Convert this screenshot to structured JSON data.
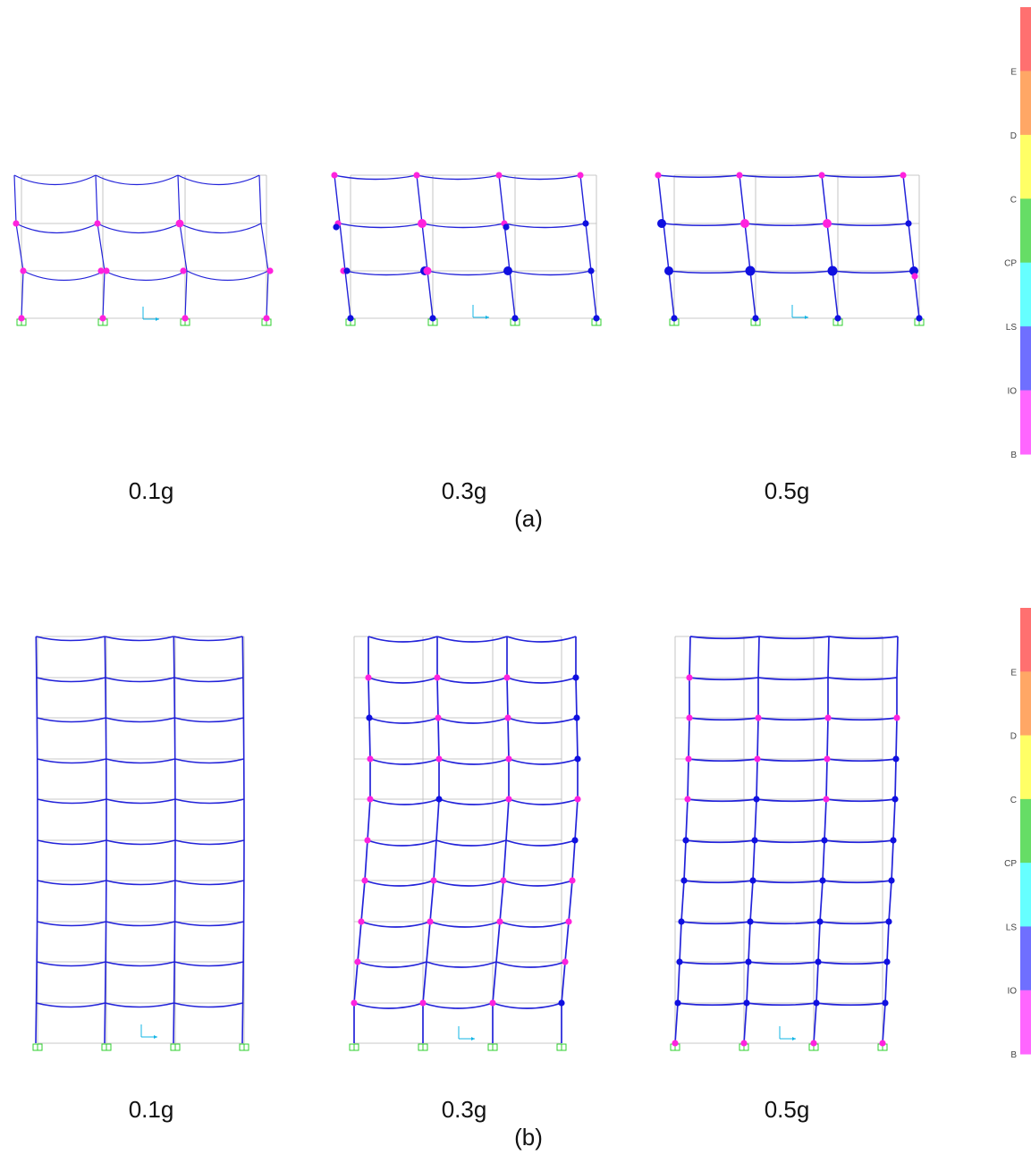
{
  "figure_a": {
    "subfigure_label": "(a)",
    "panels": [
      {
        "caption": "0.1g",
        "stories": 3,
        "bays": 3
      },
      {
        "caption": "0.3g",
        "stories": 3,
        "bays": 3
      },
      {
        "caption": "0.5g",
        "stories": 3,
        "bays": 3
      }
    ]
  },
  "figure_b": {
    "subfigure_label": "(b)",
    "panels": [
      {
        "caption": "0.1g",
        "stories": 10,
        "bays": 3
      },
      {
        "caption": "0.3g",
        "stories": 10,
        "bays": 3
      },
      {
        "caption": "0.5g",
        "stories": 10,
        "bays": 3
      }
    ]
  },
  "legend": {
    "labels": [
      "E",
      "D",
      "C",
      "CP",
      "LS",
      "IO",
      "B"
    ],
    "bands": [
      {
        "color": "#ff7070"
      },
      {
        "color": "#ffa766"
      },
      {
        "color": "#ffff66"
      },
      {
        "color": "#66dd66"
      },
      {
        "color": "#66ffff"
      },
      {
        "color": "#6f6fff"
      },
      {
        "color": "#ff66ff"
      }
    ]
  },
  "colors": {
    "frame": "#2323d9",
    "grid": "#b8b8b8",
    "hinge_b_io": "#ff22dd",
    "hinge_io_ls": "#1010e0",
    "support": "#2fcf2f",
    "axis": "#11b4e6"
  }
}
